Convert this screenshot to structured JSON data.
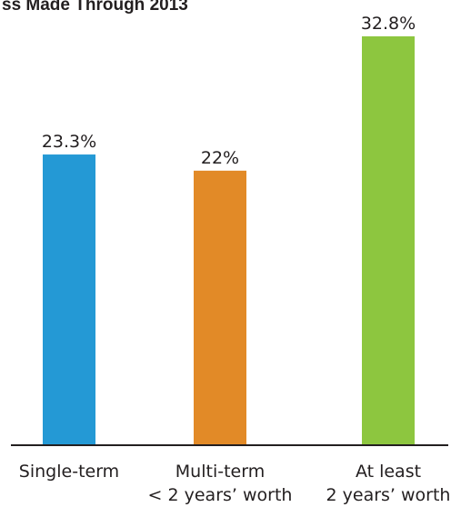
{
  "chart_data": {
    "type": "bar",
    "title": "ss Made Through 2013",
    "categories": [
      [
        "Single-term"
      ],
      [
        "Multi-term",
        "< 2 years’ worth"
      ],
      [
        "At least",
        "2 years’ worth"
      ]
    ],
    "values": [
      23.3,
      22,
      32.8
    ],
    "value_labels": [
      "23.3%",
      "22%",
      "32.8%"
    ],
    "colors": [
      "#2499d5",
      "#e28a27",
      "#8dc63f"
    ],
    "ylim": [
      0,
      32.8
    ],
    "grid": false,
    "legend": "none"
  }
}
